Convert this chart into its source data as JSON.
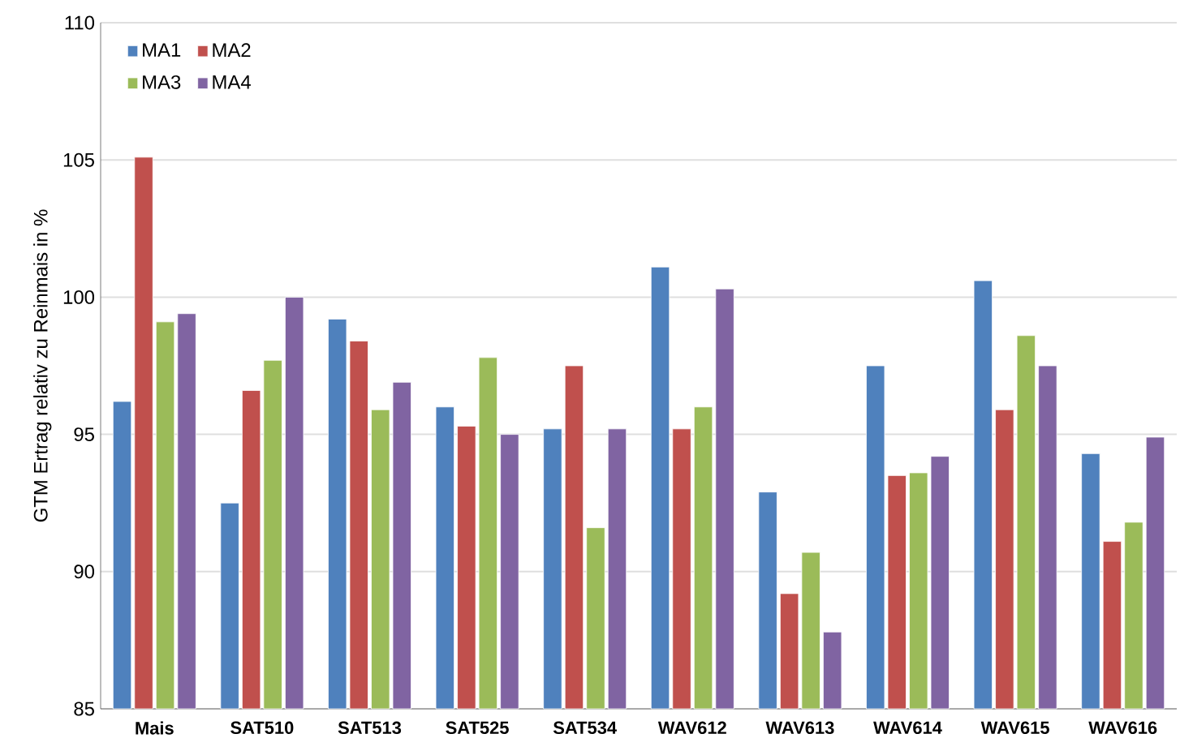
{
  "chart_data": {
    "type": "bar",
    "ylabel": "GTM Ertrag relativ zu Reinmais in %",
    "categories": [
      "Mais",
      "SAT510",
      "SAT513",
      "SAT525",
      "SAT534",
      "WAV612",
      "WAV613",
      "WAV614",
      "WAV615",
      "WAV616"
    ],
    "series": [
      {
        "name": "MA1",
        "color": "#4f81bd",
        "values": [
          96.2,
          92.5,
          99.2,
          96.0,
          95.2,
          101.1,
          92.9,
          97.5,
          100.6,
          94.3
        ]
      },
      {
        "name": "MA2",
        "color": "#c0504d",
        "values": [
          105.1,
          96.6,
          98.4,
          95.3,
          97.5,
          95.2,
          89.2,
          93.5,
          95.9,
          91.1
        ]
      },
      {
        "name": "MA3",
        "color": "#9bbb59",
        "values": [
          99.1,
          97.7,
          95.9,
          97.8,
          91.6,
          96.0,
          90.7,
          93.6,
          98.6,
          91.8
        ]
      },
      {
        "name": "MA4",
        "color": "#8064a2",
        "values": [
          99.4,
          100.0,
          96.9,
          95.0,
          95.2,
          100.3,
          87.8,
          94.2,
          97.5,
          94.9
        ]
      }
    ],
    "ylim": [
      85,
      110
    ],
    "yticks": [
      85,
      90,
      95,
      100,
      105,
      110
    ],
    "grid": "y",
    "legend": "top left"
  }
}
